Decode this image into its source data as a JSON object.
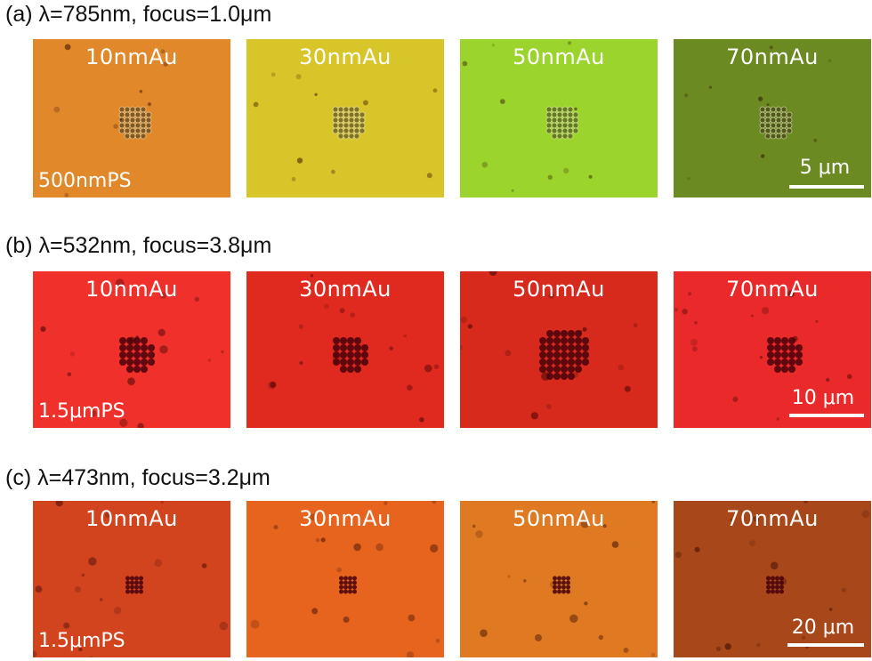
{
  "rows": [
    {
      "title": "(a) λ=785nm, focus=1.0μm",
      "particle": "500nmPS",
      "scale": "5 μm",
      "panels": [
        {
          "label": "10nmAu",
          "color": "#e0882a"
        },
        {
          "label": "30nmAu",
          "color": "#d8c52a"
        },
        {
          "label": "50nmAu",
          "color": "#9ad42c"
        },
        {
          "label": "70nmAu",
          "color": "#6b8a22"
        }
      ]
    },
    {
      "title": "(b) λ=532nm, focus=3.8μm",
      "particle": "1.5μmPS",
      "scale": "10 μm",
      "panels": [
        {
          "label": "10nmAu",
          "color": "#f0302a"
        },
        {
          "label": "30nmAu",
          "color": "#e0291f"
        },
        {
          "label": "50nmAu",
          "color": "#d82a1c"
        },
        {
          "label": "70nmAu",
          "color": "#ea2a2a"
        }
      ]
    },
    {
      "title": "(c) λ=473nm, focus=3.2μm",
      "particle": "1.5μmPS",
      "scale": "20 μm",
      "panels": [
        {
          "label": "10nmAu",
          "color": "#d2441e"
        },
        {
          "label": "30nmAu",
          "color": "#e6641e"
        },
        {
          "label": "50nmAu",
          "color": "#e07a22"
        },
        {
          "label": "70nmAu",
          "color": "#a8481a"
        }
      ]
    }
  ]
}
